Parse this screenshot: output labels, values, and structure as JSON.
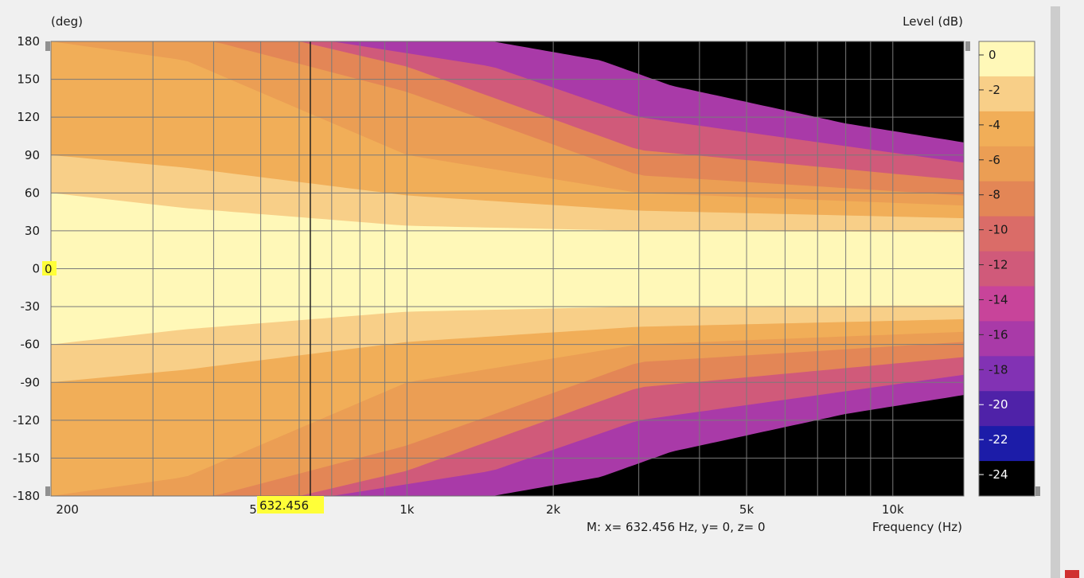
{
  "chart_data": {
    "type": "heatmap",
    "title": "",
    "xlabel": "Frequency  (Hz)",
    "ylabel": "(deg)",
    "colorbar_label": "Level  (dB)",
    "x_scale": "log",
    "xlim": [
      185,
      14000
    ],
    "ylim": [
      -180,
      180
    ],
    "x_ticks": [
      {
        "value": 200,
        "label": "200"
      },
      {
        "value": 500,
        "label": "500"
      },
      {
        "value": 1000,
        "label": "1k"
      },
      {
        "value": 2000,
        "label": "2k"
      },
      {
        "value": 5000,
        "label": "5k"
      },
      {
        "value": 10000,
        "label": "10k"
      }
    ],
    "x_gridlines": [
      300,
      400,
      500,
      600,
      700,
      800,
      900,
      1000,
      2000,
      3000,
      4000,
      5000,
      6000,
      7000,
      8000,
      9000,
      10000
    ],
    "y_ticks": [
      180,
      150,
      120,
      90,
      60,
      30,
      0,
      -30,
      -60,
      -90,
      -120,
      -150,
      -180
    ],
    "grid": true,
    "colorbar": {
      "levels": [
        0,
        -2,
        -4,
        -6,
        -8,
        -10,
        -12,
        -14,
        -16,
        -18,
        -20,
        -22,
        -24
      ],
      "colors": [
        "#fff8b8",
        "#f8cf88",
        "#f1ae58",
        "#eb9e54",
        "#e38656",
        "#da6c68",
        "#d05a7a",
        "#c8449a",
        "#a93aa8",
        "#8232b4",
        "#4f22a8",
        "#1c1ca8",
        "#000000"
      ]
    },
    "contour_boundaries": [
      {
        "level_db": -2,
        "angle_deg_at_freq": [
          [
            185,
            60
          ],
          [
            350,
            48
          ],
          [
            1000,
            34
          ],
          [
            3000,
            30
          ],
          [
            14000,
            29
          ]
        ]
      },
      {
        "level_db": -4,
        "angle_deg_at_freq": [
          [
            185,
            90
          ],
          [
            350,
            80
          ],
          [
            1000,
            58
          ],
          [
            3000,
            46
          ],
          [
            14000,
            40
          ]
        ]
      },
      {
        "level_db": -6,
        "angle_deg_at_freq": [
          [
            185,
            180
          ],
          [
            350,
            165
          ],
          [
            1000,
            90
          ],
          [
            3000,
            60
          ],
          [
            14000,
            50
          ]
        ]
      },
      {
        "level_db": -8,
        "angle_deg_at_freq": [
          [
            185,
            180
          ],
          [
            400,
            180
          ],
          [
            1000,
            140
          ],
          [
            3000,
            74
          ],
          [
            14000,
            58
          ]
        ]
      },
      {
        "level_db": -12,
        "angle_deg_at_freq": [
          [
            185,
            180
          ],
          [
            600,
            180
          ],
          [
            1000,
            160
          ],
          [
            3000,
            94
          ],
          [
            14000,
            70
          ]
        ]
      },
      {
        "level_db": -16,
        "angle_deg_at_freq": [
          [
            185,
            180
          ],
          [
            700,
            180
          ],
          [
            1500,
            160
          ],
          [
            3000,
            120
          ],
          [
            14000,
            84
          ]
        ]
      },
      {
        "level_db": -24,
        "angle_deg_at_freq": [
          [
            1500,
            180
          ],
          [
            2500,
            165
          ],
          [
            3500,
            145
          ],
          [
            8000,
            115
          ],
          [
            14000,
            100
          ]
        ]
      }
    ],
    "marker": {
      "x": 632.456,
      "y": 0,
      "z": 0
    }
  },
  "y_axis_label": "(deg)",
  "colorbar_label": "Level  (dB)",
  "x_axis_label": "Frequency  (Hz)",
  "cursor_x_label": "632.456",
  "cursor_y_label": "0",
  "marker_readout": "M:  x= 632.456 Hz,  y= 0, z= 0"
}
